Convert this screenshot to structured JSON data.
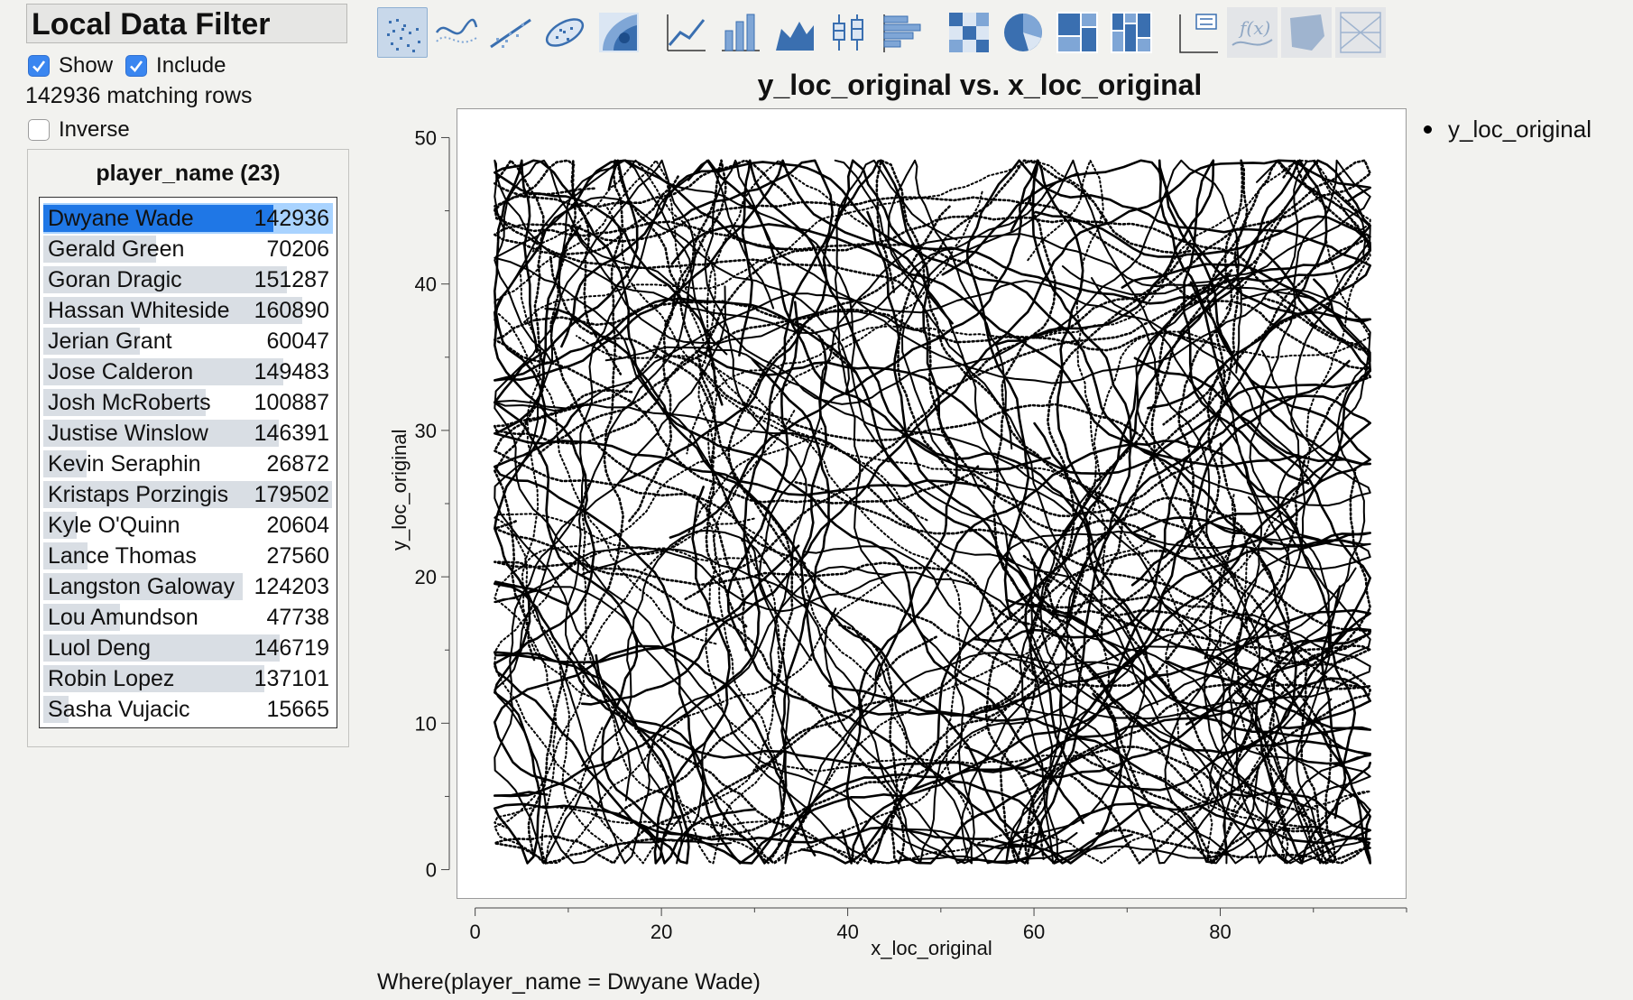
{
  "filter": {
    "title": "Local Data Filter",
    "show_label": "Show",
    "show_checked": true,
    "include_label": "Include",
    "include_checked": true,
    "matching_text": "142936 matching rows",
    "inverse_label": "Inverse",
    "inverse_checked": false,
    "list_title": "player_name (23)",
    "accent_color": "#1f77e6",
    "items": [
      {
        "name": "Dwyane Wade",
        "count": "142936",
        "selected": true
      },
      {
        "name": "Gerald Green",
        "count": "70206"
      },
      {
        "name": "Goran Dragic",
        "count": "151287"
      },
      {
        "name": "Hassan Whiteside",
        "count": "160890"
      },
      {
        "name": "Jerian Grant",
        "count": "60047"
      },
      {
        "name": "Jose Calderon",
        "count": "149483"
      },
      {
        "name": "Josh McRoberts",
        "count": "100887"
      },
      {
        "name": "Justise Winslow",
        "count": "146391"
      },
      {
        "name": "Kevin Seraphin",
        "count": "26872"
      },
      {
        "name": "Kristaps Porzingis",
        "count": "179502"
      },
      {
        "name": "Kyle O'Quinn",
        "count": "20604"
      },
      {
        "name": "Lance Thomas",
        "count": "27560"
      },
      {
        "name": "Langston Galoway",
        "count": "124203"
      },
      {
        "name": "Lou Amundson",
        "count": "47738"
      },
      {
        "name": "Luol Deng",
        "count": "146719"
      },
      {
        "name": "Robin Lopez",
        "count": "137101"
      },
      {
        "name": "Sasha Vujacic",
        "count": "15665"
      }
    ]
  },
  "toolbar": {
    "buttons": [
      {
        "icon": "points-icon",
        "selected": true
      },
      {
        "icon": "smoother-icon"
      },
      {
        "icon": "line-of-fit-icon"
      },
      {
        "icon": "ellipse-icon"
      },
      {
        "icon": "contour-icon"
      },
      {
        "icon": "line-chart-icon"
      },
      {
        "icon": "bar-chart-icon"
      },
      {
        "icon": "area-chart-icon"
      },
      {
        "icon": "box-plot-icon"
      },
      {
        "icon": "histogram-icon"
      },
      {
        "icon": "heatmap-icon"
      },
      {
        "icon": "pie-icon"
      },
      {
        "icon": "treemap-icon"
      },
      {
        "icon": "mosaic-icon"
      },
      {
        "icon": "caption-box-icon"
      },
      {
        "icon": "formula-icon",
        "disabled": true
      },
      {
        "icon": "map-shapes-icon",
        "disabled": true
      },
      {
        "icon": "parallel-icon",
        "disabled": true
      }
    ]
  },
  "chart_data": {
    "type": "scatter",
    "title": "y_loc_original vs. x_loc_original",
    "xlabel": "x_loc_original",
    "ylabel": "y_loc_original",
    "xlim": [
      -2,
      100
    ],
    "ylim": [
      -2,
      52
    ],
    "xticks": [
      0,
      20,
      40,
      60,
      80
    ],
    "yticks": [
      0,
      10,
      20,
      30,
      40,
      50
    ],
    "legend": [
      "y_loc_original"
    ],
    "legend_position": "right",
    "grid": false,
    "point_count": 142936,
    "series": [
      {
        "name": "y_loc_original",
        "x_range": [
          0,
          98
        ],
        "y_range": [
          -1,
          49.5
        ],
        "color": "#000000"
      }
    ]
  },
  "where_clause": "Where(player_name = Dwyane Wade)"
}
